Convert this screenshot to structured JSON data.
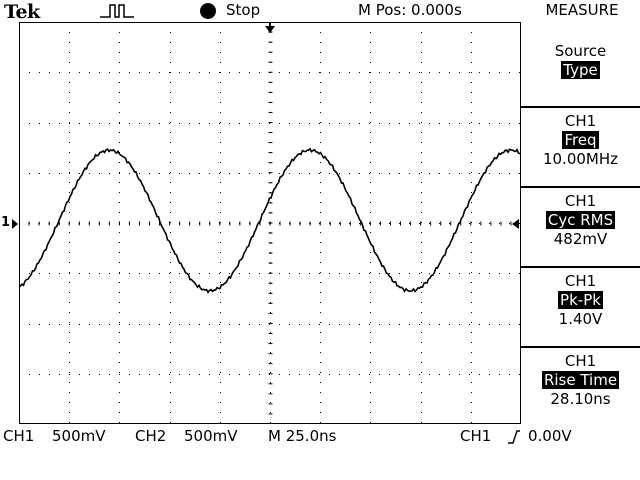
{
  "header": {
    "brand": "Tek",
    "acquisition_status": "Stop",
    "horizontal_position": "M Pos: 0.000s",
    "menu_title": "MEASURE"
  },
  "screen": {
    "channel_marker": "1"
  },
  "measure_menu": {
    "source": {
      "label": "Source",
      "value": "Type"
    },
    "measurements": [
      {
        "channel": "CH1",
        "type": "Freq",
        "value": "10.00MHz"
      },
      {
        "channel": "CH1",
        "type": "Cyc RMS",
        "value": "482mV"
      },
      {
        "channel": "CH1",
        "type": "Pk-Pk",
        "value": "1.40V"
      },
      {
        "channel": "CH1",
        "type": "Rise Time",
        "value": "28.10ns"
      }
    ]
  },
  "footer": {
    "ch1_label": "CH1",
    "ch1_scale": "500mV",
    "ch2_label": "CH2",
    "ch2_scale": "500mV",
    "timebase": "M 25.0ns",
    "trigger_source": "CH1",
    "trigger_level": "0.00V"
  },
  "icons": {
    "trigger_status": "pulse-icon",
    "run_state": "stop-dot-icon",
    "trigger_slope": "rising-edge-icon"
  },
  "colors": {
    "background": "#ffffff",
    "trace": "#000000",
    "highlight": "#000000"
  }
}
